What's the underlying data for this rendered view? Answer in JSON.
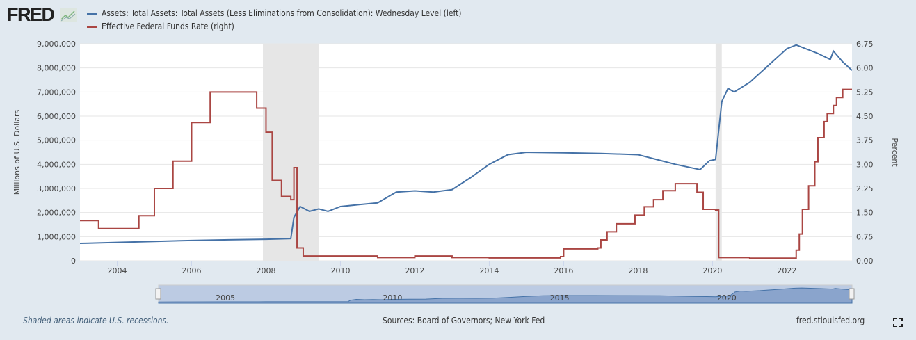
{
  "header": {
    "logo": "FRED"
  },
  "colors": {
    "assets": "#4572a7",
    "fedfunds": "#aa4643",
    "recession": "#e6e6e6",
    "background": "#e1e9f0"
  },
  "chart_data": {
    "type": "line",
    "xaxis": {
      "range": [
        "2003-01",
        "2023-10"
      ],
      "ticks": [
        "2004",
        "2006",
        "2008",
        "2010",
        "2012",
        "2014",
        "2016",
        "2018",
        "2020",
        "2022"
      ]
    },
    "yaxis_left": {
      "label": "Millions of U.S. Dollars",
      "range": [
        0,
        9000000
      ],
      "ticks": [
        "0",
        "1,000,000",
        "2,000,000",
        "3,000,000",
        "4,000,000",
        "5,000,000",
        "6,000,000",
        "7,000,000",
        "8,000,000",
        "9,000,000"
      ]
    },
    "yaxis_right": {
      "label": "Percent",
      "range": [
        0,
        6.75
      ],
      "ticks": [
        "0.00",
        "0.75",
        "1.50",
        "2.25",
        "3.00",
        "3.75",
        "4.50",
        "5.25",
        "6.00",
        "6.75"
      ]
    },
    "grid": true,
    "legend_placement": "top-left",
    "recessions": [
      [
        "2007-12",
        "2009-06"
      ],
      [
        "2020-02",
        "2020-04"
      ]
    ],
    "series": [
      {
        "name": "Assets: Total Assets: Total Assets (Less Eliminations from Consolidation): Wednesday Level (left)",
        "axis": "left",
        "step": false,
        "points": [
          [
            "2003-01",
            720000
          ],
          [
            "2004-01",
            760000
          ],
          [
            "2005-01",
            800000
          ],
          [
            "2006-01",
            840000
          ],
          [
            "2007-01",
            870000
          ],
          [
            "2008-01",
            890000
          ],
          [
            "2008-09",
            920000
          ],
          [
            "2008-10",
            1800000
          ],
          [
            "2008-12",
            2250000
          ],
          [
            "2009-03",
            2050000
          ],
          [
            "2009-06",
            2150000
          ],
          [
            "2009-09",
            2050000
          ],
          [
            "2010-01",
            2250000
          ],
          [
            "2010-07",
            2330000
          ],
          [
            "2011-01",
            2400000
          ],
          [
            "2011-07",
            2850000
          ],
          [
            "2012-01",
            2900000
          ],
          [
            "2012-07",
            2850000
          ],
          [
            "2013-01",
            2950000
          ],
          [
            "2013-07",
            3450000
          ],
          [
            "2014-01",
            4000000
          ],
          [
            "2014-07",
            4400000
          ],
          [
            "2015-01",
            4500000
          ],
          [
            "2016-01",
            4480000
          ],
          [
            "2017-01",
            4450000
          ],
          [
            "2018-01",
            4400000
          ],
          [
            "2018-07",
            4200000
          ],
          [
            "2019-01",
            4000000
          ],
          [
            "2019-09",
            3780000
          ],
          [
            "2019-12",
            4150000
          ],
          [
            "2020-02",
            4200000
          ],
          [
            "2020-04",
            6600000
          ],
          [
            "2020-06",
            7150000
          ],
          [
            "2020-08",
            7000000
          ],
          [
            "2021-01",
            7400000
          ],
          [
            "2021-07",
            8100000
          ],
          [
            "2022-01",
            8800000
          ],
          [
            "2022-04",
            8950000
          ],
          [
            "2022-11",
            8600000
          ],
          [
            "2023-03",
            8350000
          ],
          [
            "2023-04",
            8700000
          ],
          [
            "2023-07",
            8250000
          ],
          [
            "2023-10",
            7900000
          ]
        ]
      },
      {
        "name": "Effective Federal Funds Rate (right)",
        "axis": "right",
        "step": true,
        "points": [
          [
            "2003-01",
            1.25
          ],
          [
            "2003-07",
            1.0
          ],
          [
            "2004-06",
            1.0
          ],
          [
            "2004-08",
            1.4
          ],
          [
            "2005-01",
            2.25
          ],
          [
            "2005-07",
            3.1
          ],
          [
            "2006-01",
            4.3
          ],
          [
            "2006-07",
            5.25
          ],
          [
            "2007-08",
            5.25
          ],
          [
            "2007-10",
            4.75
          ],
          [
            "2008-01",
            4.0
          ],
          [
            "2008-03",
            2.5
          ],
          [
            "2008-06",
            2.0
          ],
          [
            "2008-09",
            1.9
          ],
          [
            "2008-10",
            2.9
          ],
          [
            "2008-11",
            0.4
          ],
          [
            "2009-01",
            0.15
          ],
          [
            "2010-01",
            0.15
          ],
          [
            "2011-01",
            0.1
          ],
          [
            "2012-01",
            0.15
          ],
          [
            "2013-01",
            0.1
          ],
          [
            "2014-01",
            0.09
          ],
          [
            "2015-12",
            0.13
          ],
          [
            "2016-01",
            0.37
          ],
          [
            "2016-12",
            0.4
          ],
          [
            "2017-01",
            0.65
          ],
          [
            "2017-03",
            0.9
          ],
          [
            "2017-06",
            1.15
          ],
          [
            "2017-12",
            1.42
          ],
          [
            "2018-03",
            1.68
          ],
          [
            "2018-06",
            1.9
          ],
          [
            "2018-09",
            2.18
          ],
          [
            "2019-01",
            2.4
          ],
          [
            "2019-08",
            2.13
          ],
          [
            "2019-10",
            1.6
          ],
          [
            "2020-02",
            1.58
          ],
          [
            "2020-03",
            0.1
          ],
          [
            "2021-01",
            0.08
          ],
          [
            "2022-03",
            0.08
          ],
          [
            "2022-04",
            0.33
          ],
          [
            "2022-05",
            0.83
          ],
          [
            "2022-06",
            1.6
          ],
          [
            "2022-08",
            2.33
          ],
          [
            "2022-10",
            3.08
          ],
          [
            "2022-11",
            3.83
          ],
          [
            "2023-01",
            4.33
          ],
          [
            "2023-02",
            4.58
          ],
          [
            "2023-04",
            4.83
          ],
          [
            "2023-05",
            5.08
          ],
          [
            "2023-07",
            5.33
          ],
          [
            "2023-10",
            5.33
          ]
        ]
      }
    ],
    "navigator": {
      "ticks": [
        "2005",
        "2010",
        "2015",
        "2020"
      ]
    }
  },
  "footer": {
    "recession_note": "Shaded areas indicate U.S. recessions.",
    "sources": "Sources: Board of Governors; New York Fed",
    "site": "fred.stlouisfed.org"
  }
}
